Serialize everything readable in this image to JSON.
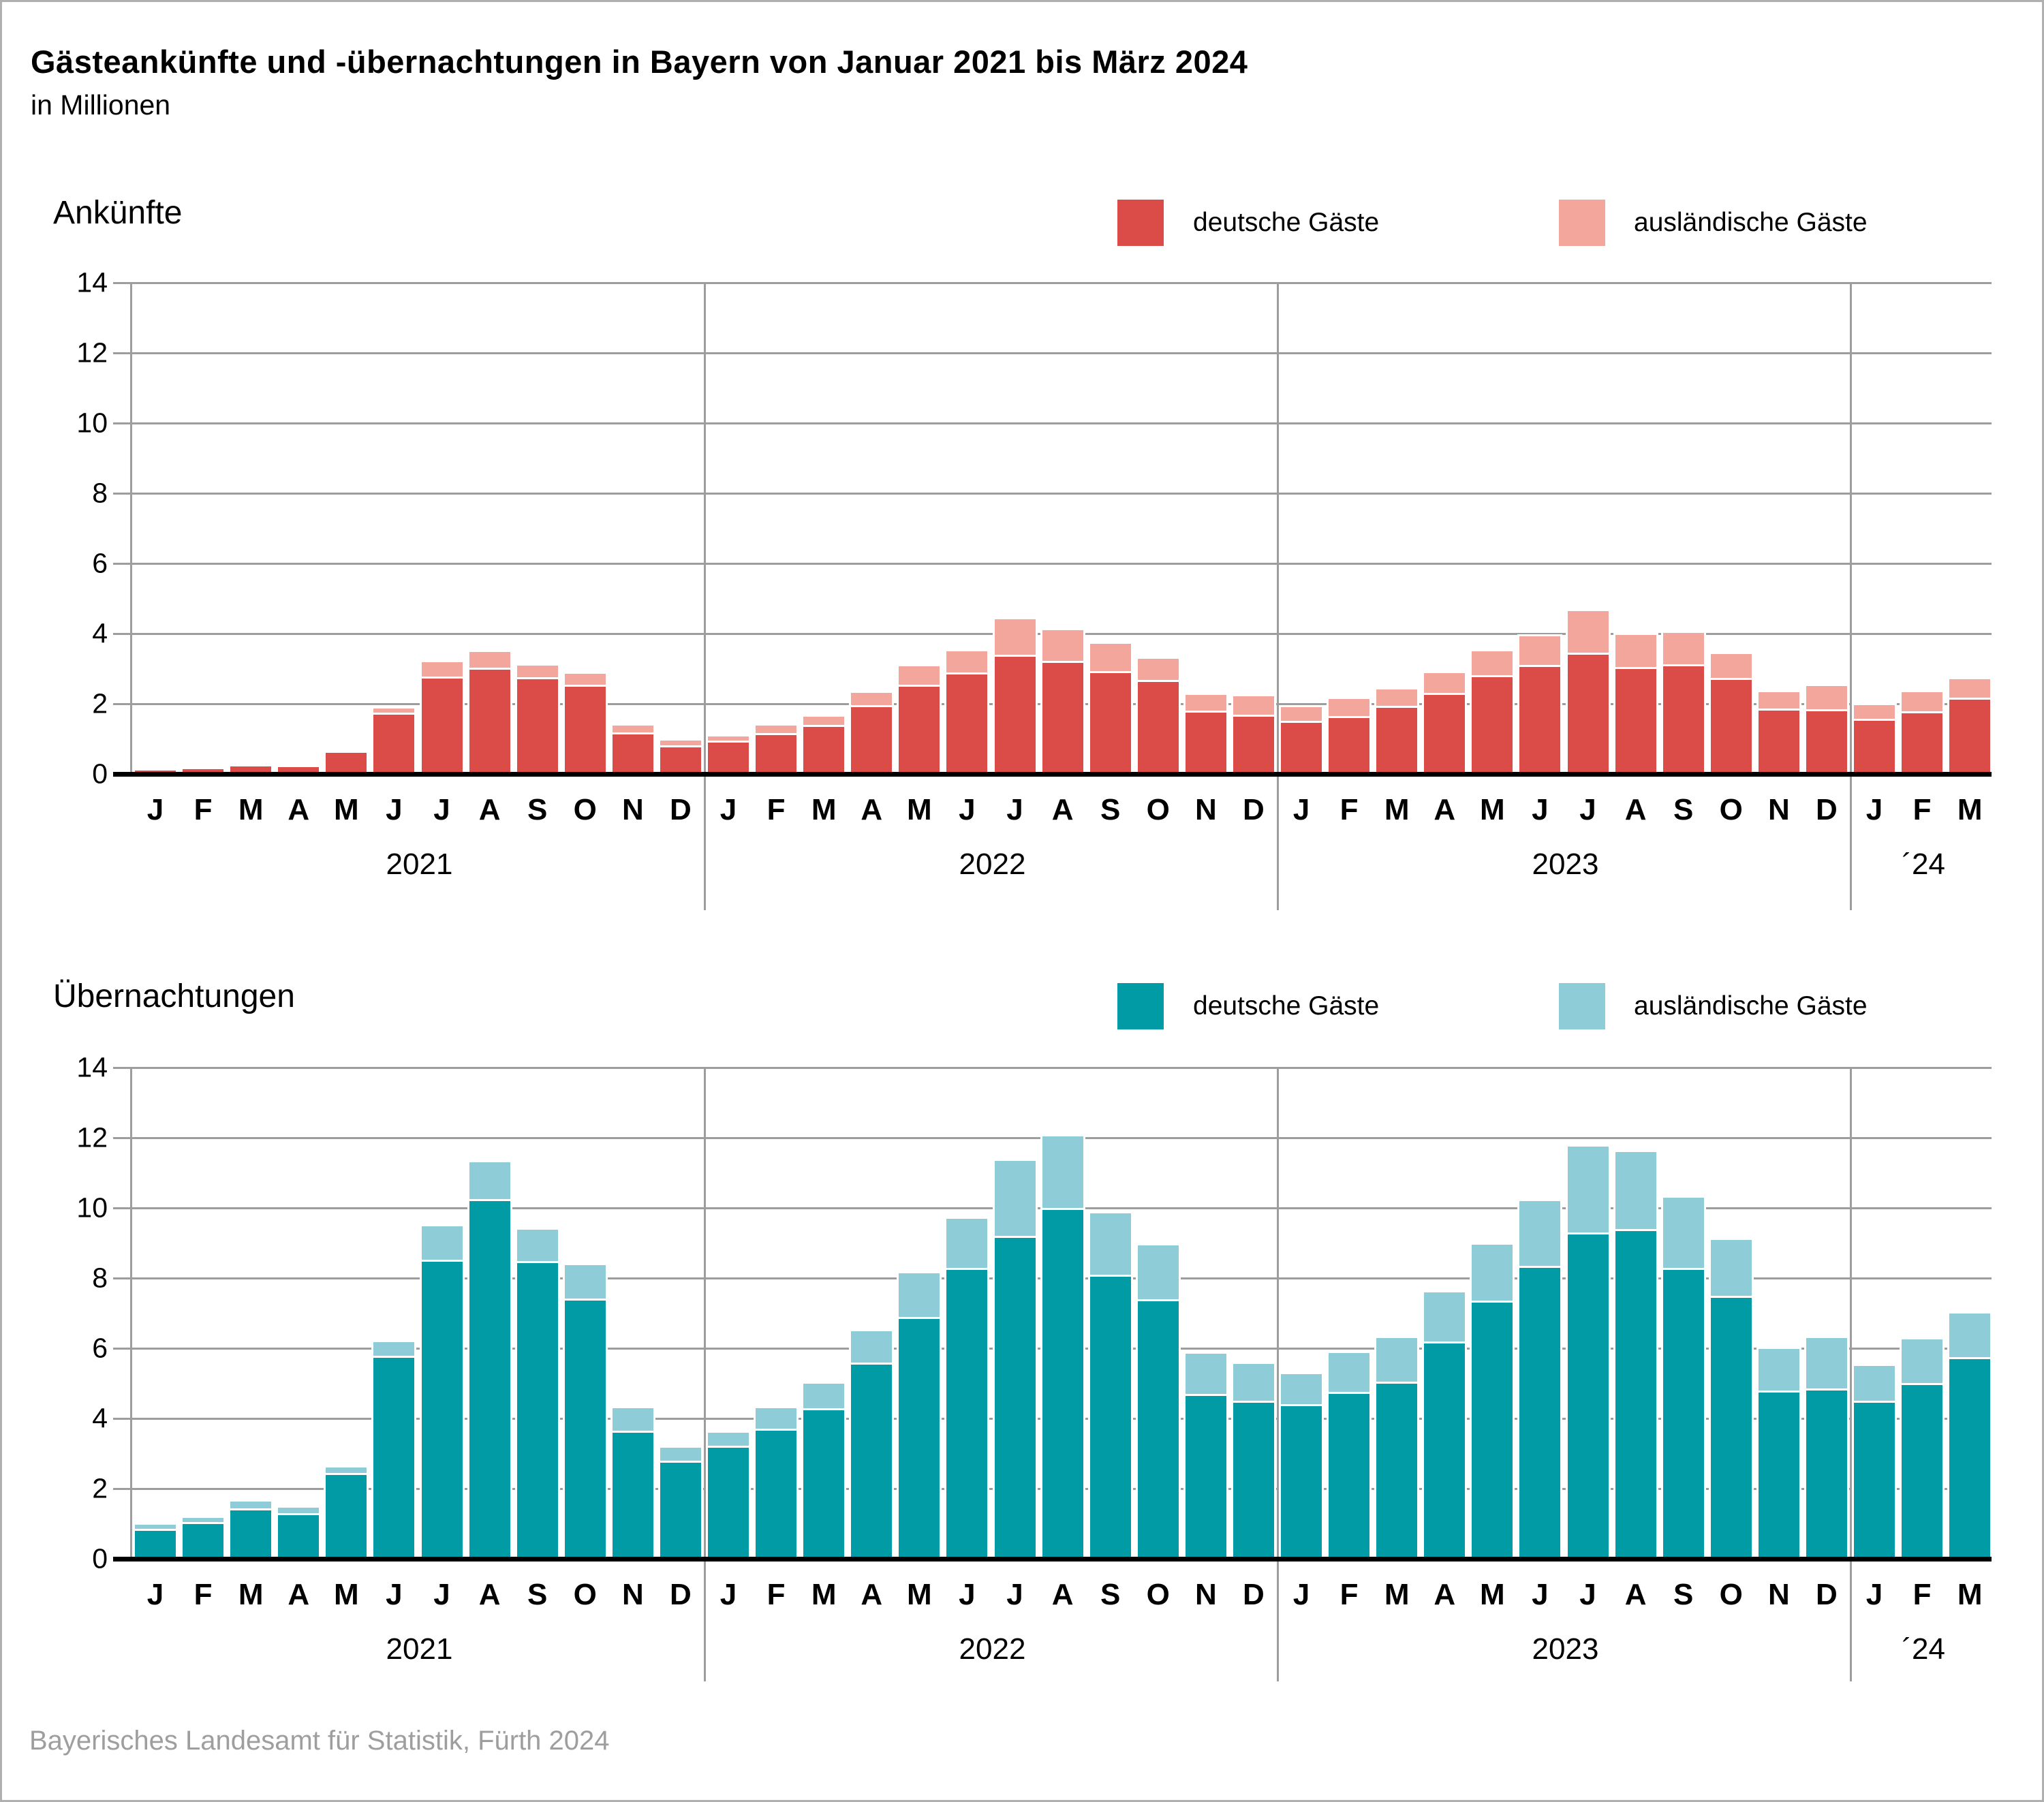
{
  "page": {
    "title": "Gästeankünfte und -übernachtungen in Bayern von Januar 2021 bis März 2024",
    "subtitle": "in Millionen",
    "footer": "Bayerisches Landesamt für Statistik, Fürth 2024"
  },
  "colors": {
    "arrivals_domestic": "#db4b47",
    "arrivals_foreign": "#f2a69c",
    "nights_domestic": "#009ba4",
    "nights_foreign": "#8eccd8",
    "gridline": "#9d9d9d",
    "zero_axis": "#000000",
    "footer_text": "#9e9e9e"
  },
  "chart_data": [
    {
      "type": "bar",
      "stacked": true,
      "title": "Ankünfte",
      "unit": "Millionen",
      "grid": true,
      "legend_position": "top-right",
      "ylim": [
        0,
        14
      ],
      "ytick_step": 2,
      "x_labels": [
        "J",
        "F",
        "M",
        "A",
        "M",
        "J",
        "J",
        "A",
        "S",
        "O",
        "N",
        "D",
        "J",
        "F",
        "M",
        "A",
        "M",
        "J",
        "J",
        "A",
        "S",
        "O",
        "N",
        "D",
        "J",
        "F",
        "M",
        "A",
        "M",
        "J",
        "J",
        "A",
        "S",
        "O",
        "N",
        "D",
        "J",
        "F",
        "M"
      ],
      "year_groups": [
        {
          "label": "2021",
          "months": 12
        },
        {
          "label": "2022",
          "months": 12
        },
        {
          "label": "2023",
          "months": 12
        },
        {
          "label": "´24",
          "months": 3
        }
      ],
      "series": [
        {
          "name": "deutsche Gäste",
          "color": "#db4b47",
          "values": [
            0.15,
            0.2,
            0.28,
            0.25,
            0.66,
            1.74,
            2.78,
            3.02,
            2.76,
            2.55,
            1.18,
            0.81,
            0.95,
            1.16,
            1.4,
            1.97,
            2.55,
            2.9,
            3.39,
            3.23,
            2.94,
            2.68,
            1.81,
            1.68,
            1.52,
            1.65,
            1.95,
            2.32,
            2.81,
            3.1,
            3.45,
            3.05,
            3.12,
            2.74,
            1.86,
            1.84,
            1.58,
            1.79,
            2.18
          ]
        },
        {
          "name": "ausländische Gäste",
          "color": "#f2a69c",
          "values": [
            0.03,
            0.03,
            0.04,
            0.04,
            0.05,
            0.18,
            0.46,
            0.5,
            0.38,
            0.37,
            0.26,
            0.19,
            0.17,
            0.27,
            0.3,
            0.4,
            0.58,
            0.66,
            1.06,
            0.93,
            0.83,
            0.66,
            0.51,
            0.58,
            0.45,
            0.54,
            0.53,
            0.62,
            0.74,
            0.87,
            1.24,
            0.97,
            0.95,
            0.73,
            0.53,
            0.72,
            0.45,
            0.61,
            0.59
          ]
        }
      ]
    },
    {
      "type": "bar",
      "stacked": true,
      "title": "Übernachtungen",
      "unit": "Millionen",
      "grid": true,
      "legend_position": "top-right",
      "ylim": [
        0,
        14
      ],
      "ytick_step": 2,
      "x_labels": [
        "J",
        "F",
        "M",
        "A",
        "M",
        "J",
        "J",
        "A",
        "S",
        "O",
        "N",
        "D",
        "J",
        "F",
        "M",
        "A",
        "M",
        "J",
        "J",
        "A",
        "S",
        "O",
        "N",
        "D",
        "J",
        "F",
        "M",
        "A",
        "M",
        "J",
        "J",
        "A",
        "S",
        "O",
        "N",
        "D",
        "J",
        "F",
        "M"
      ],
      "year_groups": [
        {
          "label": "2021",
          "months": 12
        },
        {
          "label": "2022",
          "months": 12
        },
        {
          "label": "2023",
          "months": 12
        },
        {
          "label": "´24",
          "months": 3
        }
      ],
      "series": [
        {
          "name": "deutsche Gäste",
          "color": "#009ba4",
          "values": [
            0.85,
            1.05,
            1.43,
            1.31,
            2.45,
            5.78,
            8.52,
            10.25,
            8.48,
            7.42,
            3.65,
            2.8,
            3.22,
            3.7,
            4.3,
            5.6,
            6.9,
            8.3,
            9.2,
            10.0,
            8.1,
            7.4,
            4.7,
            4.5,
            4.4,
            4.75,
            5.05,
            6.2,
            7.35,
            8.35,
            9.3,
            9.4,
            8.3,
            7.5,
            4.8,
            4.85,
            4.5,
            5.0,
            5.75
          ]
        },
        {
          "name": "ausländische Gäste",
          "color": "#8eccd8",
          "values": [
            0.18,
            0.18,
            0.25,
            0.21,
            0.22,
            0.45,
            1.0,
            1.1,
            0.95,
            1.0,
            0.7,
            0.42,
            0.42,
            0.65,
            0.75,
            0.95,
            1.3,
            1.45,
            2.2,
            2.1,
            1.8,
            1.6,
            1.2,
            1.1,
            0.92,
            1.16,
            1.3,
            1.45,
            1.65,
            1.9,
            2.5,
            2.25,
            2.05,
            1.65,
            1.25,
            1.5,
            1.05,
            1.3,
            1.3
          ]
        }
      ]
    }
  ]
}
